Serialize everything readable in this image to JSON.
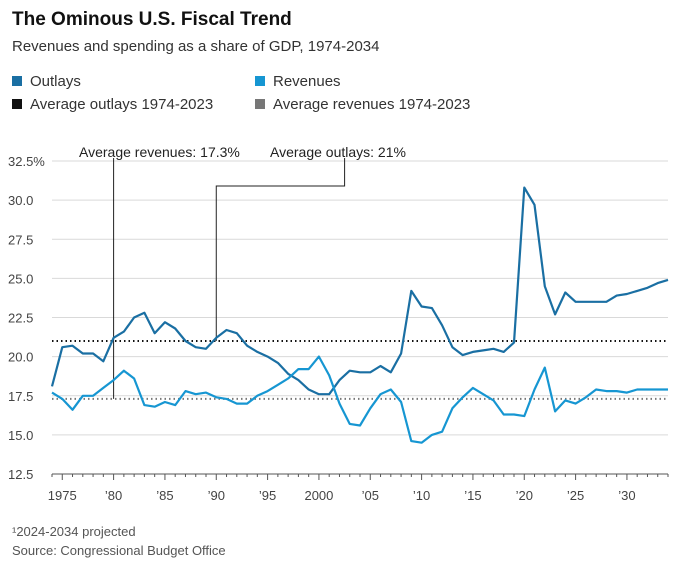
{
  "header": {
    "title": "The Ominous U.S. Fiscal Trend",
    "subtitle": "Revenues and spending as a share of GDP, 1974-2034"
  },
  "legend": [
    {
      "label": "Outlays",
      "color": "#1a6fa3",
      "style": "square"
    },
    {
      "label": "Revenues",
      "color": "#1696d2",
      "style": "square"
    },
    {
      "label": "Average outlays 1974-2023",
      "color": "#111111",
      "style": "square"
    },
    {
      "label": "Average revenues 1974-2023",
      "color": "#777777",
      "style": "square"
    }
  ],
  "annotations": {
    "avg_revenues": "Average revenues: 17.3%",
    "avg_outlays": "Average outlays: 21%"
  },
  "footer": {
    "note": "¹2024-2034 projected",
    "source": "Source: Congressional Budget Office"
  },
  "chart_data": {
    "type": "line",
    "title": "The Ominous U.S. Fiscal Trend",
    "subtitle": "Revenues and spending as a share of GDP, 1974-2034",
    "xlim": [
      1974,
      2034
    ],
    "ylim": [
      12.5,
      32.5
    ],
    "y_ticks": [
      12.5,
      15.0,
      17.5,
      20.0,
      22.5,
      25.0,
      27.5,
      30.0,
      32.5
    ],
    "y_tick_labels": [
      "12.5",
      "15.0",
      "17.5",
      "20.0",
      "22.5",
      "25.0",
      "27.5",
      "30.0",
      "32.5%"
    ],
    "x_ticks": [
      1975,
      1980,
      1985,
      1990,
      1995,
      2000,
      2005,
      2010,
      2015,
      2020,
      2025,
      2030
    ],
    "x_tick_labels": [
      "1975",
      "’80",
      "’85",
      "’90",
      "’95",
      "2000",
      "’05",
      "’10",
      "’15",
      "’20",
      "’25",
      "’30"
    ],
    "grid": "horizontal",
    "x": [
      1974,
      1975,
      1976,
      1977,
      1978,
      1979,
      1980,
      1981,
      1982,
      1983,
      1984,
      1985,
      1986,
      1987,
      1988,
      1989,
      1990,
      1991,
      1992,
      1993,
      1994,
      1995,
      1996,
      1997,
      1998,
      1999,
      2000,
      2001,
      2002,
      2003,
      2004,
      2005,
      2006,
      2007,
      2008,
      2009,
      2010,
      2011,
      2012,
      2013,
      2014,
      2015,
      2016,
      2017,
      2018,
      2019,
      2020,
      2021,
      2022,
      2023,
      2024,
      2025,
      2026,
      2027,
      2028,
      2029,
      2030,
      2031,
      2032,
      2033,
      2034
    ],
    "series": [
      {
        "name": "Outlays",
        "color": "#1a6fa3",
        "values": [
          18.1,
          20.6,
          20.7,
          20.2,
          20.2,
          19.7,
          21.2,
          21.6,
          22.5,
          22.8,
          21.5,
          22.2,
          21.8,
          21.0,
          20.6,
          20.5,
          21.2,
          21.7,
          21.5,
          20.7,
          20.3,
          20.0,
          19.6,
          18.9,
          18.5,
          17.9,
          17.6,
          17.6,
          18.5,
          19.1,
          19.0,
          19.0,
          19.4,
          19.0,
          20.2,
          24.2,
          23.2,
          23.1,
          22.0,
          20.6,
          20.1,
          20.3,
          20.4,
          20.5,
          20.3,
          20.9,
          30.8,
          29.7,
          24.5,
          22.7,
          24.1,
          23.5,
          23.5,
          23.5,
          23.5,
          23.9,
          24.0,
          24.2,
          24.4,
          24.7,
          24.9
        ]
      },
      {
        "name": "Revenues",
        "color": "#1696d2",
        "values": [
          17.7,
          17.3,
          16.6,
          17.5,
          17.5,
          18.0,
          18.5,
          19.1,
          18.6,
          16.9,
          16.8,
          17.1,
          16.9,
          17.8,
          17.6,
          17.7,
          17.4,
          17.3,
          17.0,
          17.0,
          17.5,
          17.8,
          18.2,
          18.6,
          19.2,
          19.2,
          20.0,
          18.8,
          17.0,
          15.7,
          15.6,
          16.7,
          17.6,
          17.9,
          17.1,
          14.6,
          14.5,
          15.0,
          15.2,
          16.7,
          17.4,
          18.0,
          17.6,
          17.2,
          16.3,
          16.3,
          16.2,
          17.9,
          19.3,
          16.5,
          17.2,
          17.0,
          17.4,
          17.9,
          17.8,
          17.8,
          17.7,
          17.9,
          17.9,
          17.9,
          17.9
        ]
      }
    ],
    "reference_lines": [
      {
        "name": "Average outlays 1974-2023",
        "value": 21.0,
        "color": "#111111"
      },
      {
        "name": "Average revenues 1974-2023",
        "value": 17.3,
        "color": "#777777"
      }
    ]
  }
}
